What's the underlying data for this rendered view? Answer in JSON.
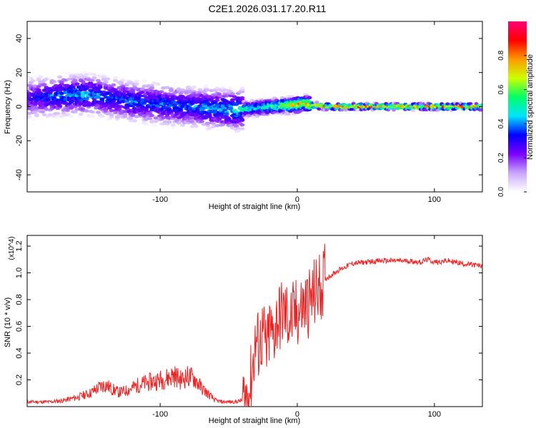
{
  "title": "C2E1.2026.031.17.20.R11",
  "chart_data": [
    {
      "type": "heatmap",
      "name": "spectrogram",
      "xlabel": "Height of straight line (km)",
      "ylabel": "Frequency (Hz)",
      "xlim": [
        -197,
        135
      ],
      "ylim": [
        -50,
        50
      ],
      "xticks": [
        -100,
        0,
        100
      ],
      "xtick_labels": [
        "-100",
        "0",
        "100"
      ],
      "yticks": [
        -40,
        -20,
        0,
        20,
        40
      ],
      "ytick_labels": [
        "-40",
        "-20",
        "0",
        "20",
        "40"
      ],
      "grid": false,
      "colorbar": {
        "label": "Normalized spectral amplitude",
        "range": [
          0,
          1
        ],
        "ticks": [
          0.0,
          0.2,
          0.4,
          0.6,
          0.8
        ],
        "tick_labels": [
          "0.0",
          "0.2",
          "0.4",
          "0.6",
          "0.8"
        ],
        "colors": [
          "#ffffff",
          "#c9a7ff",
          "#7a00ff",
          "#0000ff",
          "#00e5ff",
          "#00ff66",
          "#ccff00",
          "#ff9900",
          "#ff0000",
          "#ff0077"
        ]
      },
      "ridge": {
        "x": [
          -197,
          -180,
          -165,
          -150,
          -135,
          -120,
          -100,
          -80,
          -60,
          -45,
          -30,
          -20,
          -10,
          0,
          5,
          10,
          20,
          40,
          60,
          80,
          100,
          120,
          135
        ],
        "y": [
          5,
          6,
          7,
          7,
          5,
          3,
          1.5,
          0,
          -1,
          -2,
          -1,
          0,
          0.5,
          1,
          2,
          1,
          0,
          0,
          0,
          0,
          0,
          0,
          0
        ],
        "amplitude": [
          0.3,
          0.4,
          0.45,
          0.45,
          0.4,
          0.4,
          0.4,
          0.4,
          0.45,
          0.5,
          0.55,
          0.6,
          0.7,
          0.85,
          0.85,
          0.85,
          0.9,
          0.9,
          0.9,
          0.9,
          0.9,
          0.9,
          0.9
        ]
      }
    },
    {
      "type": "line",
      "name": "snr",
      "xlabel": "Height of straight line (km)",
      "ylabel": "SNR (10 * v/v)",
      "y_multiplier": "(x10^4)",
      "xlim": [
        -197,
        135
      ],
      "ylim": [
        0,
        1.28
      ],
      "xticks": [
        -100,
        0,
        100
      ],
      "xtick_labels": [
        "-100",
        "0",
        "100"
      ],
      "yticks": [
        0.2,
        0.4,
        0.6,
        0.8,
        1.0,
        1.2
      ],
      "ytick_labels": [
        "0.2",
        "0.4",
        "0.6",
        "0.8",
        "1.0",
        "1.2"
      ],
      "grid": false,
      "series": [
        {
          "color": "#ee2222",
          "x": [
            -197,
            -180,
            -170,
            -160,
            -150,
            -145,
            -140,
            -135,
            -130,
            -125,
            -120,
            -115,
            -110,
            -105,
            -100,
            -95,
            -90,
            -85,
            -80,
            -75,
            -70,
            -65,
            -60,
            -55,
            -50,
            -45,
            -40,
            -35,
            -32,
            -30,
            -28,
            -25,
            -22,
            -20,
            -18,
            -15,
            -10,
            -5,
            0,
            5,
            10,
            20,
            30,
            40,
            60,
            80,
            90,
            95,
            100,
            110,
            120,
            135
          ],
          "y": [
            0.03,
            0.03,
            0.04,
            0.06,
            0.09,
            0.12,
            0.14,
            0.11,
            0.09,
            0.1,
            0.12,
            0.14,
            0.15,
            0.16,
            0.17,
            0.18,
            0.2,
            0.17,
            0.19,
            0.18,
            0.12,
            0.08,
            0.04,
            0.03,
            0.03,
            0.03,
            0.04,
            0.1,
            0.35,
            0.5,
            0.45,
            0.55,
            0.4,
            0.6,
            0.5,
            0.65,
            0.7,
            0.65,
            0.7,
            0.75,
            0.8,
            0.95,
            1.02,
            1.07,
            1.09,
            1.09,
            1.08,
            1.1,
            1.08,
            1.09,
            1.07,
            1.05
          ]
        }
      ]
    }
  ]
}
